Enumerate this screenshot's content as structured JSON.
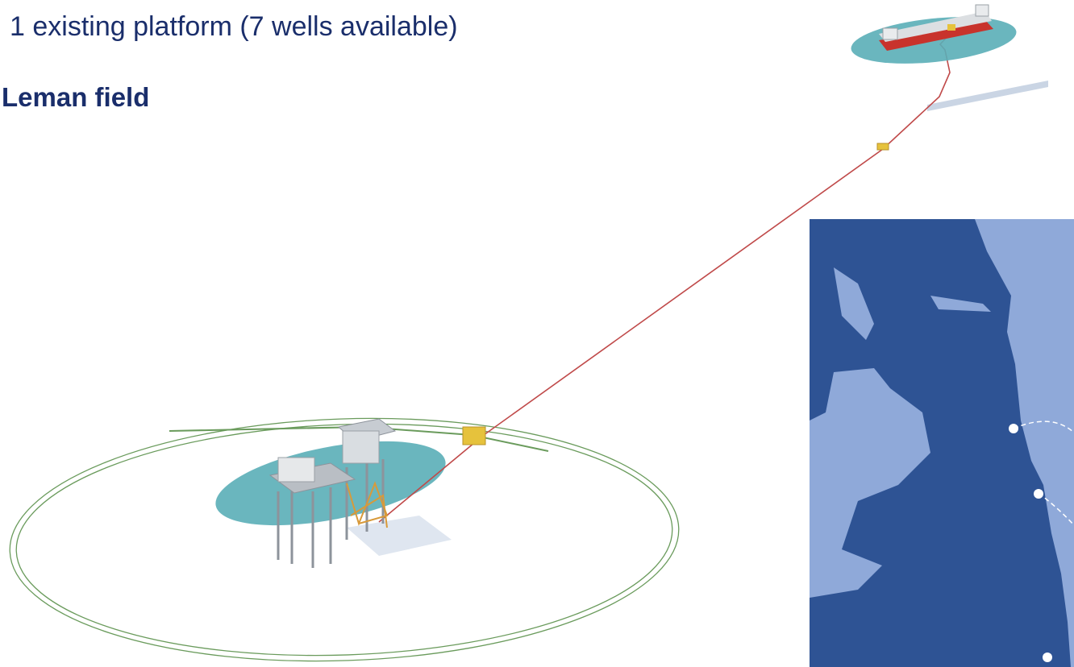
{
  "header": {
    "caption": "1 existing platform (7 wells available)",
    "field_name": "Leman field"
  },
  "scene": {
    "colors": {
      "water_patch": "#5aaeb7",
      "ring": "#6a9b5c",
      "pipeline": "#c04a4a",
      "manifold": "#e6c23c",
      "vessel_hull": "#c8332c",
      "platform": "#b9bec4",
      "map_land": "#2e5394",
      "map_sea": "#8fa9d9"
    }
  },
  "map": {
    "markers_count": 3
  }
}
